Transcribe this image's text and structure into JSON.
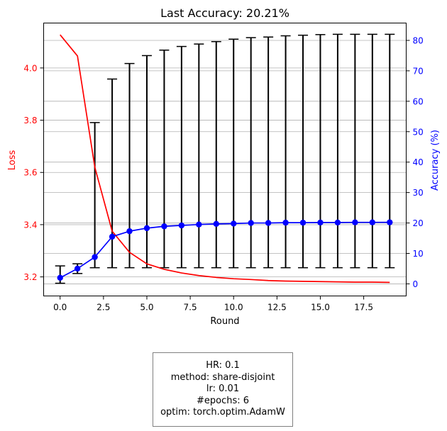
{
  "chart_data": {
    "type": "line",
    "title": "Last Accuracy: 20.21%",
    "xlabel": "Round",
    "ylabel_left": "Loss",
    "ylabel_right": "Accuracy (%)",
    "xlim": [
      -0.95,
      19.95
    ],
    "ylim_left": [
      3.127,
      4.172
    ],
    "ylim_right": [
      -3.98,
      85.7
    ],
    "x_ticks": [
      0.0,
      2.5,
      5.0,
      7.5,
      10.0,
      12.5,
      15.0,
      17.5
    ],
    "x_tick_labels": [
      "0.0",
      "2.5",
      "5.0",
      "7.5",
      "10.0",
      "12.5",
      "15.0",
      "17.5"
    ],
    "y_left_ticks": [
      3.2,
      3.4,
      3.6,
      3.8,
      4.0
    ],
    "y_left_tick_labels": [
      "3.2",
      "3.4",
      "3.6",
      "3.8",
      "4.0"
    ],
    "y_right_ticks": [
      0,
      10,
      20,
      30,
      40,
      50,
      60,
      70,
      80
    ],
    "y_right_tick_labels": [
      "0",
      "10",
      "20",
      "30",
      "40",
      "50",
      "60",
      "70",
      "80"
    ],
    "grid": "horizontal",
    "x": [
      0,
      1,
      2,
      3,
      4,
      5,
      6,
      7,
      8,
      9,
      10,
      11,
      12,
      13,
      14,
      15,
      16,
      17,
      18,
      19
    ],
    "series": [
      {
        "axis": "left",
        "color": "#ff0000",
        "marker": "none",
        "values": [
          4.127,
          4.046,
          3.62,
          3.375,
          3.294,
          3.25,
          3.229,
          3.215,
          3.205,
          3.198,
          3.193,
          3.19,
          3.186,
          3.184,
          3.183,
          3.182,
          3.181,
          3.18,
          3.18,
          3.179
        ]
      },
      {
        "axis": "right",
        "color": "#0000ff",
        "marker": "circle",
        "values": [
          2.0,
          5.0,
          8.8,
          15.5,
          17.3,
          18.3,
          18.9,
          19.2,
          19.5,
          19.7,
          19.8,
          20.0,
          20.0,
          20.1,
          20.1,
          20.15,
          20.15,
          20.2,
          20.2,
          20.21
        ],
        "error_bars": {
          "color": "#000000",
          "lower": [
            0.2,
            3.4,
            5.3,
            5.3,
            5.3,
            5.3,
            5.3,
            5.3,
            5.3,
            5.3,
            5.3,
            5.3,
            5.3,
            5.3,
            5.3,
            5.3,
            5.3,
            5.3,
            5.3,
            5.3
          ],
          "upper": [
            5.9,
            6.6,
            53.0,
            67.3,
            72.4,
            75.0,
            76.8,
            78.0,
            78.8,
            79.6,
            80.4,
            80.9,
            81.1,
            81.5,
            81.7,
            81.9,
            82.0,
            82.0,
            82.0,
            82.0
          ]
        }
      }
    ]
  },
  "info_box": {
    "lines": [
      "HR: 0.1",
      "method: share-disjoint",
      "lr: 0.01",
      "#epochs: 6",
      "optim: torch.optim.AdamW"
    ]
  }
}
